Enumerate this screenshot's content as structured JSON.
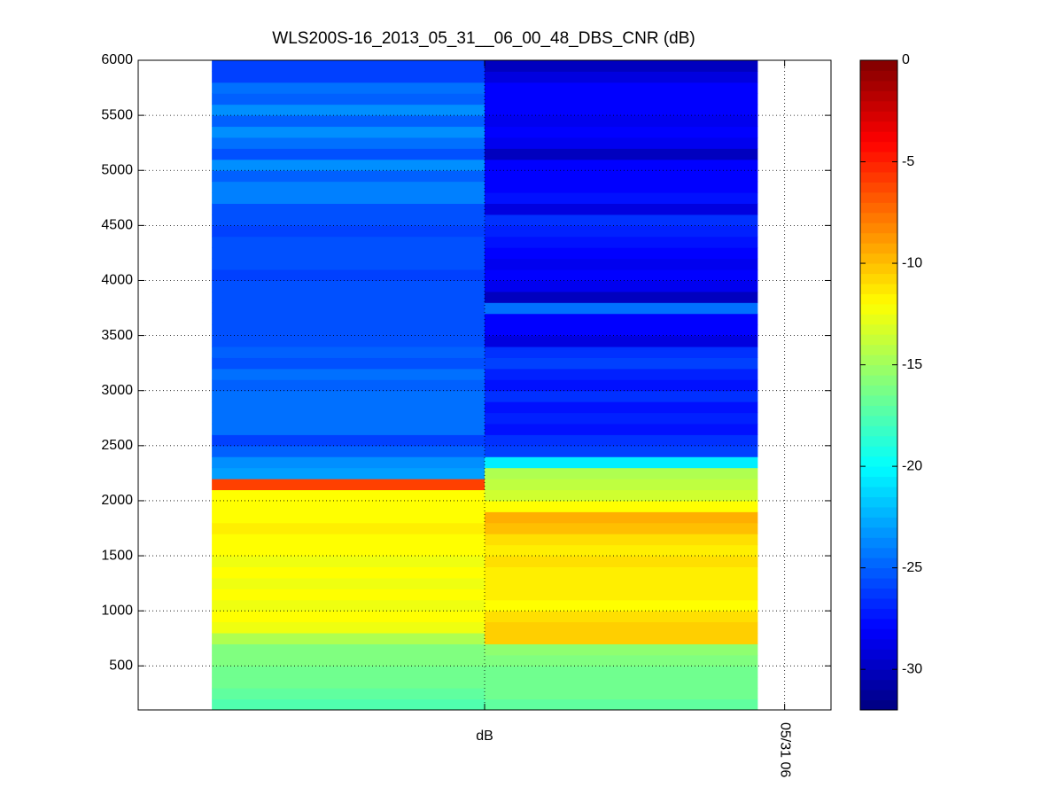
{
  "chart_data": {
    "type": "heatmap",
    "title": "WLS200S-16_2013_05_31__06_00_48_DBS_CNR (dB)",
    "x": [
      0.5,
      1.5
    ],
    "xlim": [
      -0.27,
      2.27
    ],
    "xticks": [
      {
        "value": 1,
        "label": "dB"
      },
      {
        "value": 2.1,
        "label": "05/31 06"
      }
    ],
    "y": [
      150,
      250,
      350,
      450,
      550,
      650,
      750,
      850,
      950,
      1050,
      1150,
      1250,
      1350,
      1450,
      1550,
      1650,
      1750,
      1850,
      1950,
      2050,
      2150,
      2250,
      2350,
      2450,
      2550,
      2650,
      2750,
      2850,
      2950,
      3050,
      3150,
      3250,
      3350,
      3450,
      3550,
      3650,
      3750,
      3850,
      3950,
      4050,
      4150,
      4250,
      4350,
      4450,
      4550,
      4650,
      4750,
      4850,
      4950,
      5050,
      5150,
      5250,
      5350,
      5450,
      5550,
      5650,
      5750,
      5850,
      5950
    ],
    "ylim": [
      100,
      6000
    ],
    "yticks": [
      500,
      1000,
      1500,
      2000,
      2500,
      3000,
      3500,
      4000,
      4500,
      5000,
      5500,
      6000
    ],
    "z": [
      [
        -17.5,
        -17
      ],
      [
        -17,
        -16.5
      ],
      [
        -16.5,
        -16.5
      ],
      [
        -16.5,
        -16.5
      ],
      [
        -16,
        -16
      ],
      [
        -16,
        -15.5
      ],
      [
        -14.5,
        -10.5
      ],
      [
        -12.5,
        -10.5
      ],
      [
        -12,
        -11
      ],
      [
        -12.5,
        -12
      ],
      [
        -12,
        -11.5
      ],
      [
        -12.5,
        -11.5
      ],
      [
        -12,
        -11.5
      ],
      [
        -12.5,
        -11
      ],
      [
        -12,
        -11.5
      ],
      [
        -12,
        -11
      ],
      [
        -11.5,
        -10
      ],
      [
        -12,
        -9.5
      ],
      [
        -12,
        -12
      ],
      [
        -12,
        -13.5
      ],
      [
        -6,
        -14
      ],
      [
        -23,
        -14.5
      ],
      [
        -23.5,
        -20.5
      ],
      [
        -25,
        -26
      ],
      [
        -26,
        -26.5
      ],
      [
        -24.5,
        -27.5
      ],
      [
        -24.5,
        -27
      ],
      [
        -24.5,
        -27.5
      ],
      [
        -24.5,
        -26.5
      ],
      [
        -25,
        -27.5
      ],
      [
        -24.5,
        -27
      ],
      [
        -25.5,
        -26
      ],
      [
        -25,
        -26.5
      ],
      [
        -25.5,
        -29
      ],
      [
        -25.5,
        -28
      ],
      [
        -25.5,
        -28
      ],
      [
        -25.5,
        -24.5
      ],
      [
        -25.5,
        -30
      ],
      [
        -25.5,
        -28.5
      ],
      [
        -26,
        -28
      ],
      [
        -25.5,
        -28.5
      ],
      [
        -25.5,
        -28
      ],
      [
        -25.5,
        -27.5
      ],
      [
        -26,
        -27
      ],
      [
        -25.5,
        -26.5
      ],
      [
        -25.5,
        -29
      ],
      [
        -24,
        -27.5
      ],
      [
        -24,
        -28
      ],
      [
        -25,
        -28
      ],
      [
        -23.5,
        -28
      ],
      [
        -25.5,
        -30
      ],
      [
        -24.5,
        -28.5
      ],
      [
        -23.5,
        -28
      ],
      [
        -25,
        -28.5
      ],
      [
        -23.5,
        -28
      ],
      [
        -25,
        -28
      ],
      [
        -24.5,
        -28
      ],
      [
        -26,
        -29
      ],
      [
        -26,
        -30
      ]
    ],
    "clim": [
      -32,
      0
    ],
    "cticks": [
      0,
      -5,
      -10,
      -15,
      -20,
      -25,
      -30
    ],
    "colormap": "jet",
    "grid": true
  }
}
